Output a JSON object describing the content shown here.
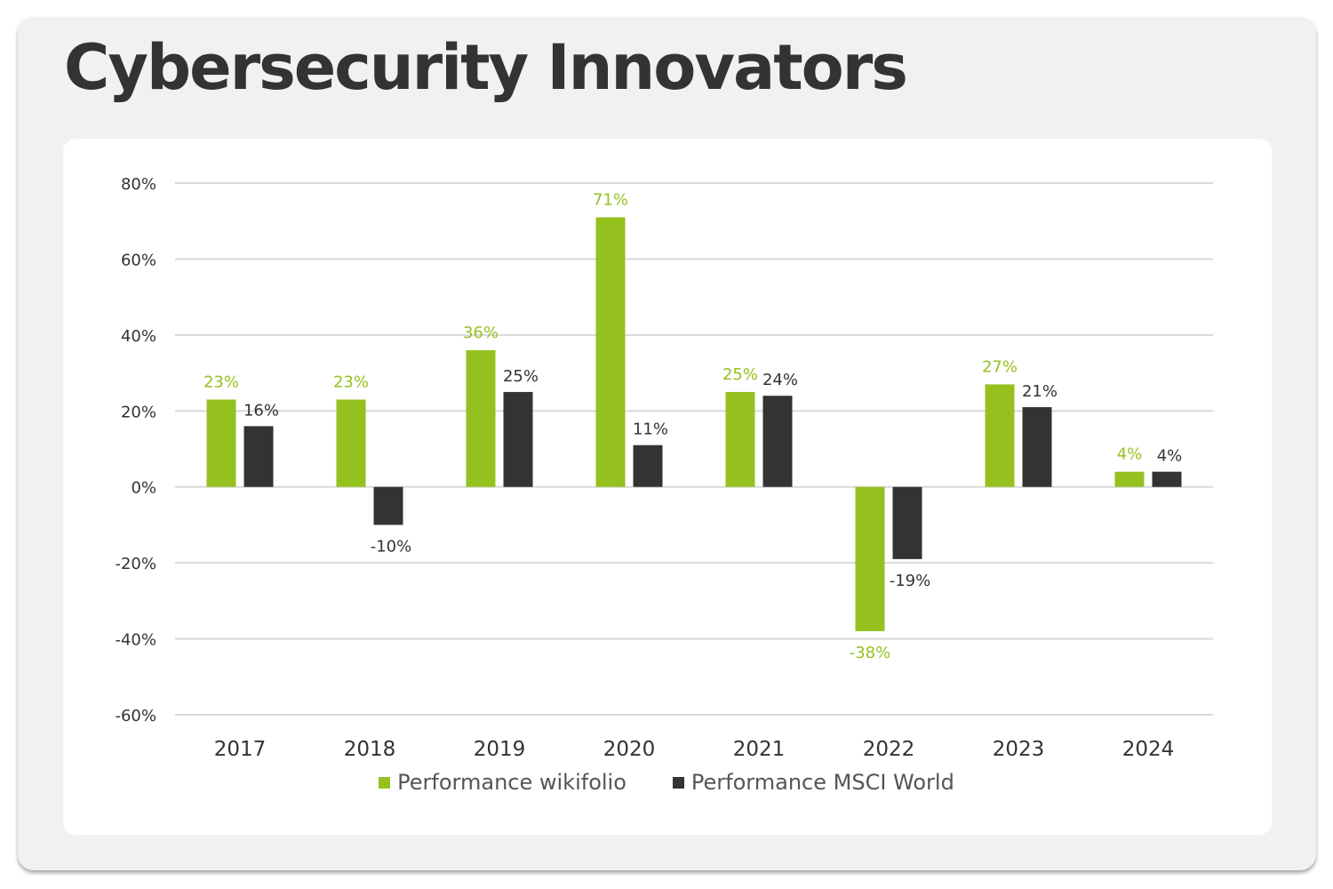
{
  "title": "Cybersecurity Innovators",
  "colors": {
    "wikifolio": "#95c11f",
    "msci": "#333333",
    "grid": "#d9d9d9",
    "axis_text": "#333333"
  },
  "chart_data": {
    "type": "bar",
    "title": "Cybersecurity Innovators",
    "xlabel": "",
    "ylabel": "",
    "categories": [
      "2017",
      "2018",
      "2019",
      "2020",
      "2021",
      "2022",
      "2023",
      "2024"
    ],
    "series": [
      {
        "name": "Performance wikifolio",
        "values": [
          23,
          23,
          36,
          71,
          25,
          -38,
          27,
          4
        ],
        "labels": [
          "23%",
          "23%",
          "36%",
          "71%",
          "25%",
          "-38%",
          "27%",
          "4%"
        ]
      },
      {
        "name": "Performance MSCI World",
        "values": [
          16,
          -10,
          25,
          11,
          24,
          -19,
          21,
          4
        ],
        "labels": [
          "16%",
          "-10%",
          "25%",
          "11%",
          "24%",
          "-19%",
          "21%",
          "4%"
        ]
      }
    ],
    "yticks": [
      80,
      60,
      40,
      20,
      0,
      -20,
      -40,
      -60
    ],
    "ytick_labels": [
      "80%",
      "60%",
      "40%",
      "20%",
      "0%",
      "-20%",
      "-40%",
      "-60%"
    ],
    "ylim": [
      -60,
      80
    ],
    "grid": true,
    "legend_position": "bottom-center"
  }
}
